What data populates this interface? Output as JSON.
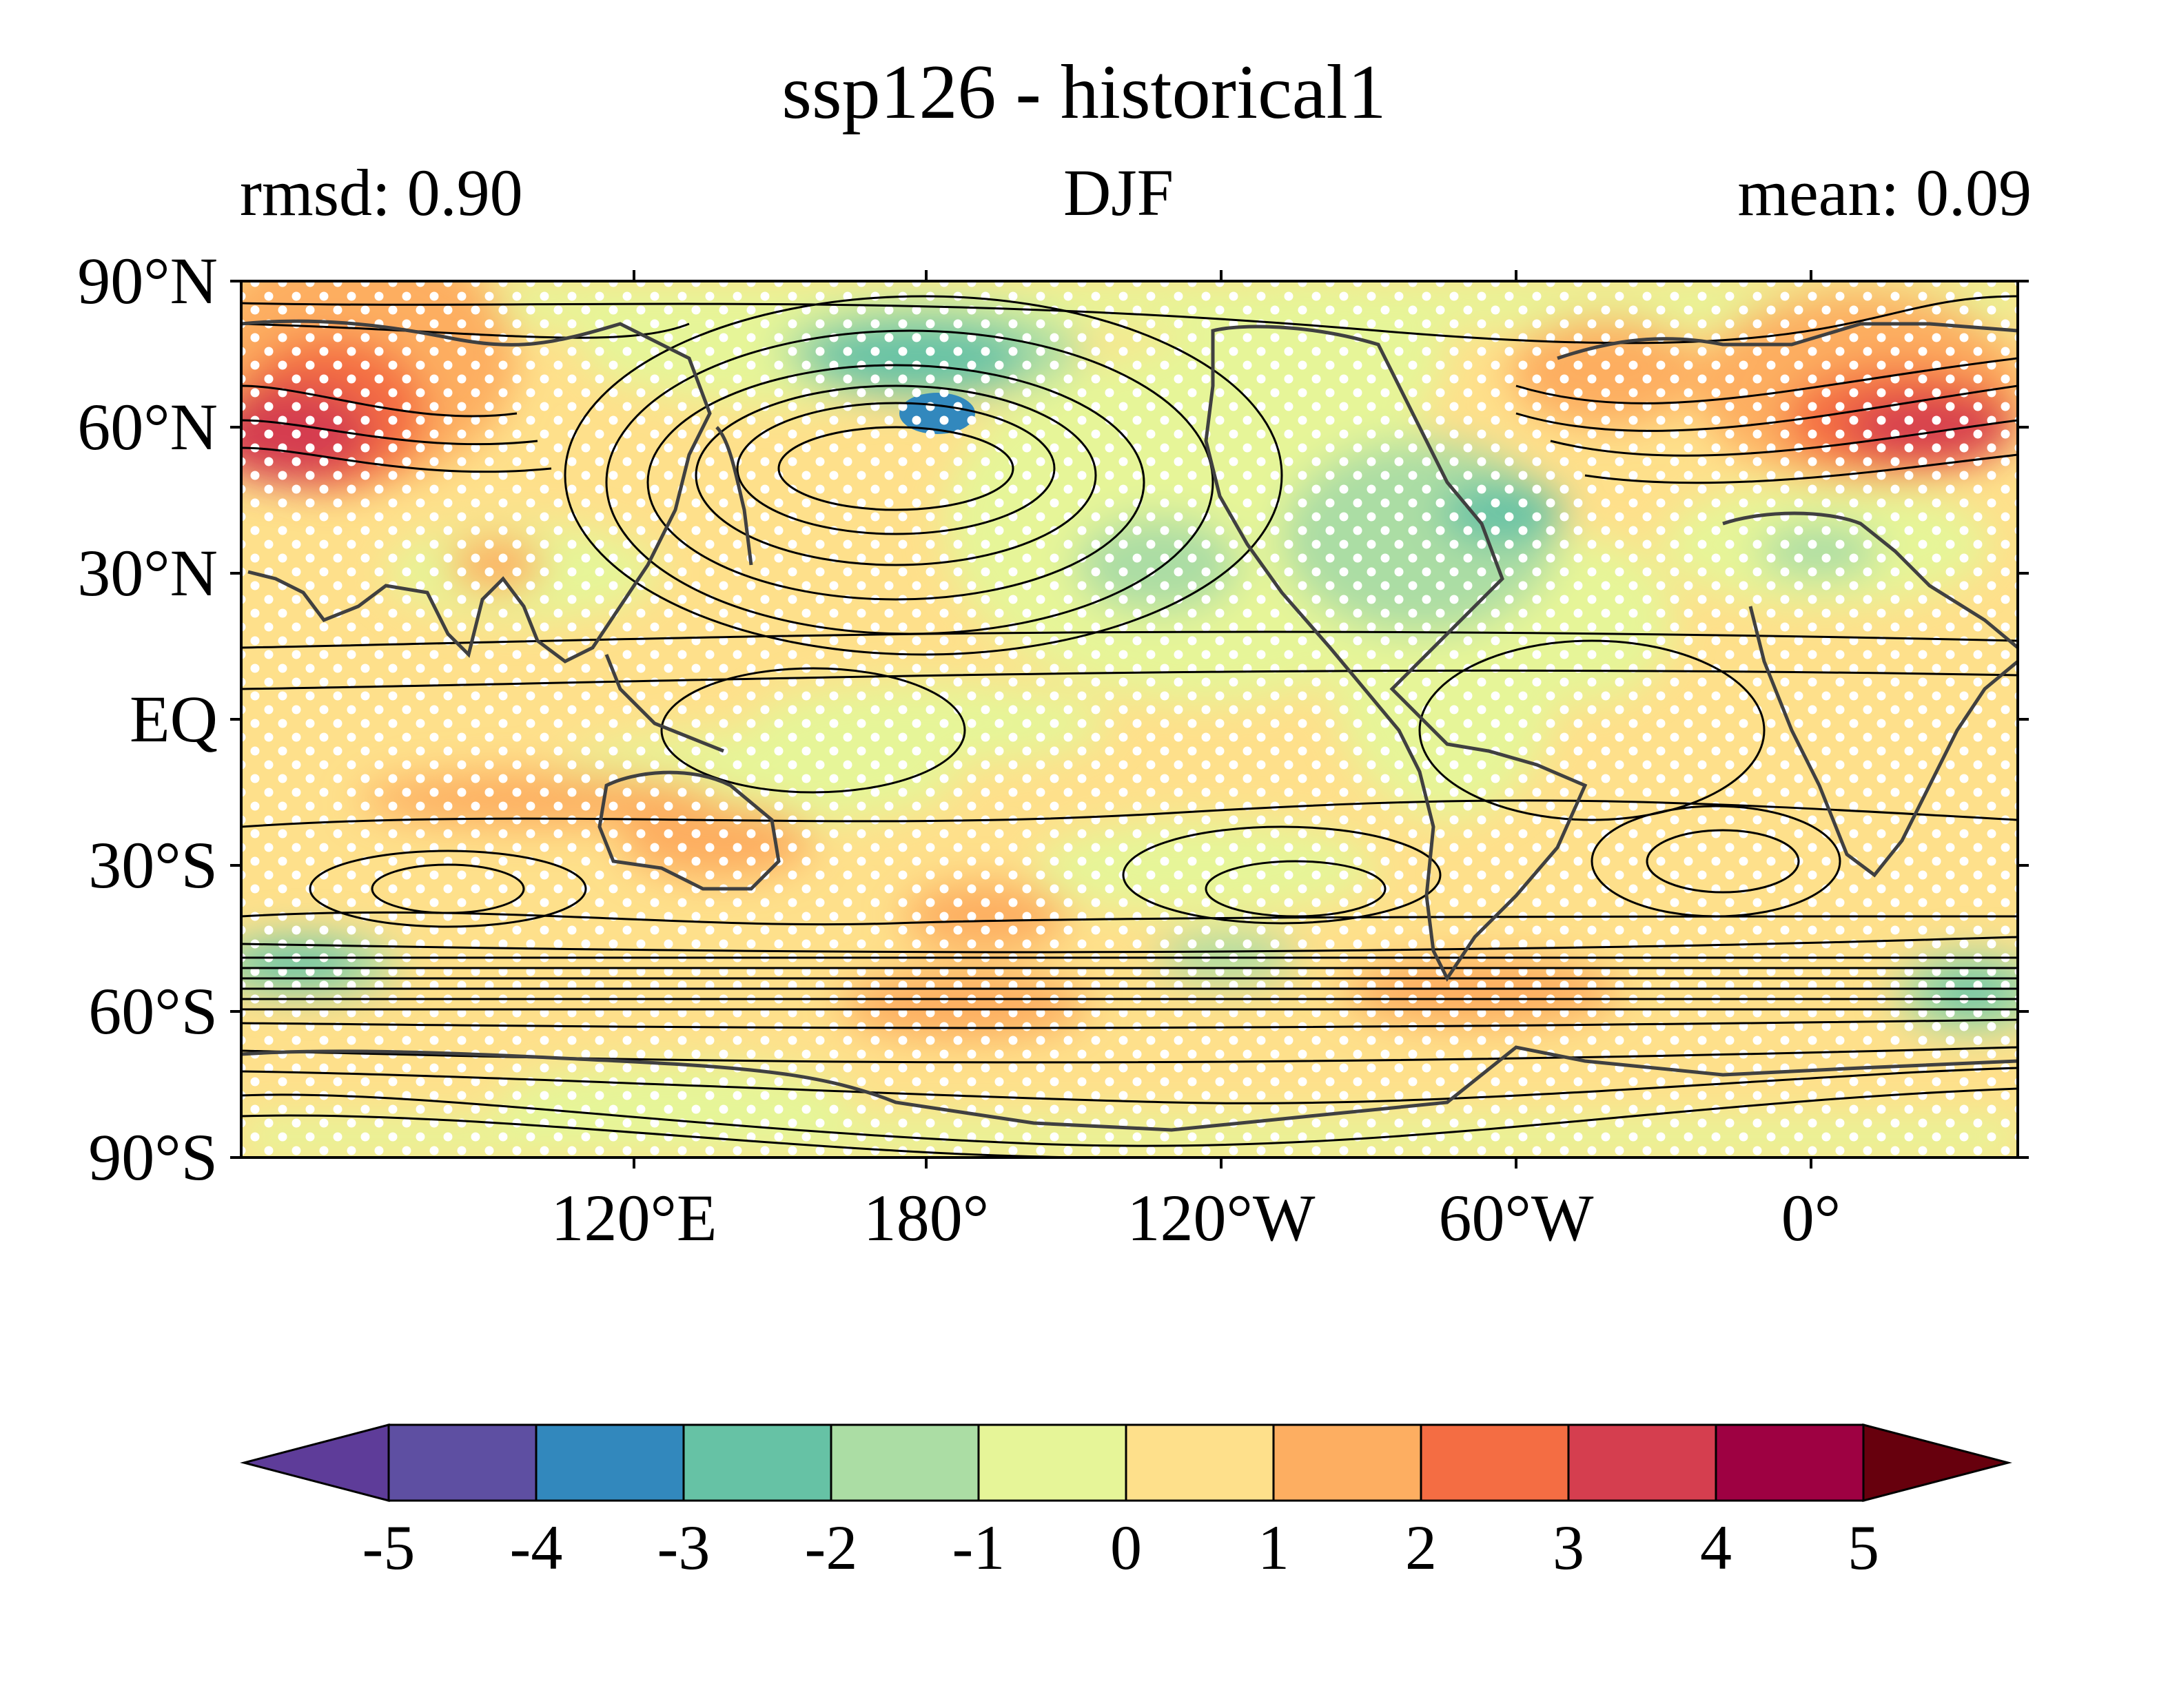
{
  "title": "ssp126 - historical1",
  "subtitle_left": "rmsd: 0.90",
  "subtitle_center": "DJF",
  "subtitle_right": "mean: 0.09",
  "latitude_labels": [
    "90°N",
    "60°N",
    "30°N",
    "EQ",
    "30°S",
    "60°S",
    "90°S"
  ],
  "longitude_labels": [
    "120°E",
    "180°",
    "120°W",
    "60°W",
    "0°"
  ],
  "colorbar": {
    "tick_labels": [
      "-5",
      "-4",
      "-3",
      "-2",
      "-1",
      "0",
      "1",
      "2",
      "3",
      "4",
      "5"
    ],
    "colors": [
      "#5e3c99",
      "#5e4fa2",
      "#3288bd",
      "#66c2a5",
      "#abdda4",
      "#e6f598",
      "#fee08b",
      "#fdae61",
      "#f46d43",
      "#d53e4f",
      "#9e0142",
      "#67000d"
    ]
  }
}
